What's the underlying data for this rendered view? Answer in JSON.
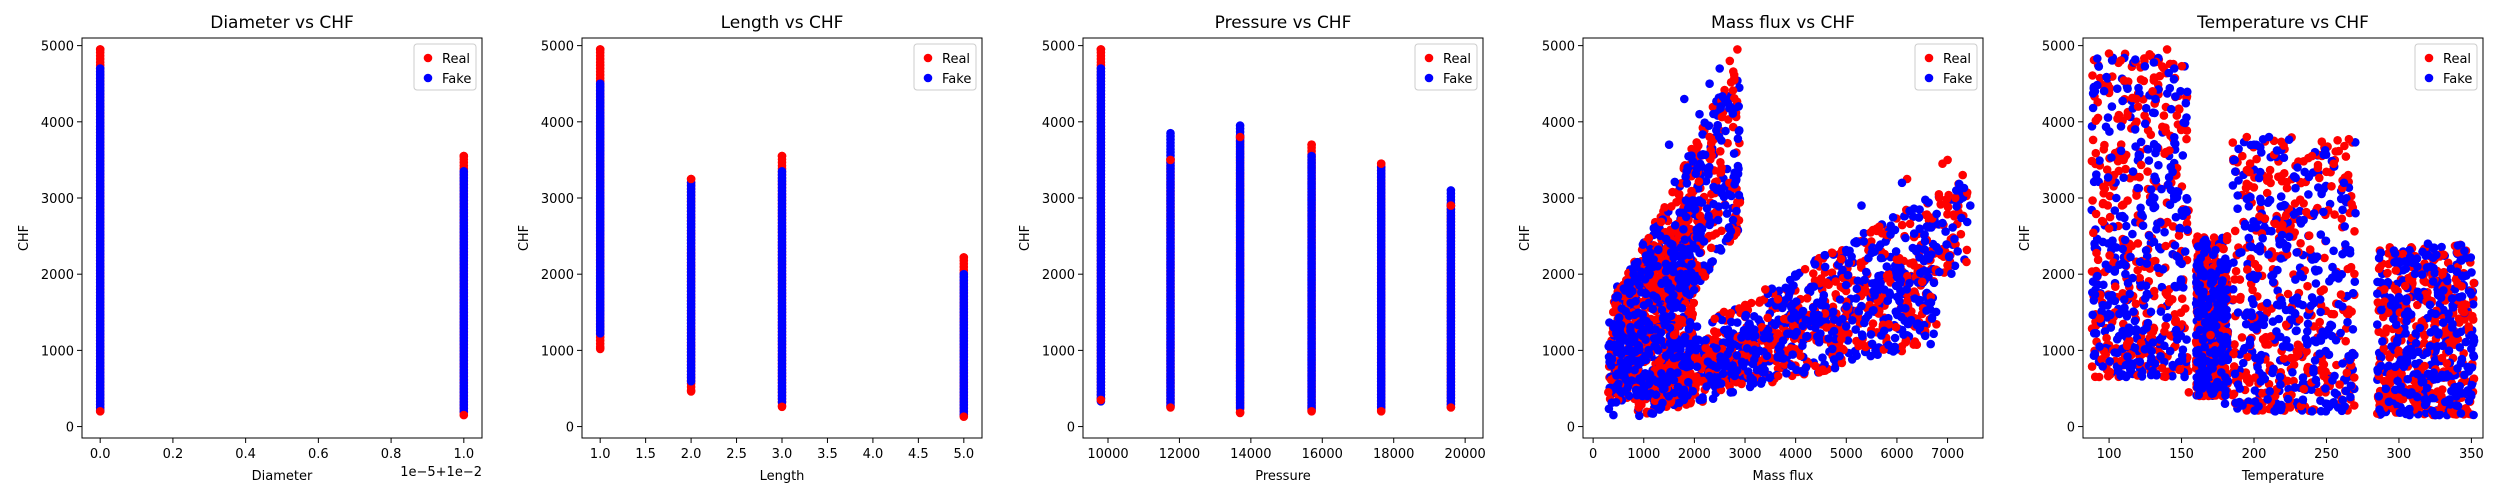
{
  "chart_data": [
    {
      "type": "scatter",
      "title": "Diameter vs CHF",
      "xlabel": "Diameter",
      "ylabel": "CHF",
      "xlim": [
        -0.05,
        1.05
      ],
      "ylim": [
        -150,
        5100
      ],
      "xticks": [
        0.0,
        0.2,
        0.4,
        0.6,
        0.8,
        1.0
      ],
      "xtick_labels": [
        "0.0",
        "0.2",
        "0.4",
        "0.6",
        "0.8",
        "1.0"
      ],
      "xaxis_offset_text": "1e−5+1e−2",
      "yticks": [
        0,
        1000,
        2000,
        3000,
        4000,
        5000
      ],
      "legend": {
        "position": "top-right",
        "entries": [
          "Real",
          "Fake"
        ]
      },
      "series": [
        {
          "name": "Real",
          "color": "#ff0000",
          "segments": [
            {
              "x": 0.0,
              "y": [
                200,
                4950
              ]
            },
            {
              "x": 1.0,
              "y": [
                150,
                3550
              ]
            }
          ]
        },
        {
          "name": "Fake",
          "color": "#0000ff",
          "segments": [
            {
              "x": 0.0,
              "y": [
                190,
                4700
              ]
            },
            {
              "x": 1.0,
              "y": [
                160,
                3350
              ]
            }
          ]
        }
      ]
    },
    {
      "type": "scatter",
      "title": "Length vs CHF",
      "xlabel": "Length",
      "ylabel": "CHF",
      "xlim": [
        0.8,
        5.2
      ],
      "ylim": [
        -150,
        5100
      ],
      "xticks": [
        1.0,
        1.5,
        2.0,
        2.5,
        3.0,
        3.5,
        4.0,
        4.5,
        5.0
      ],
      "xtick_labels": [
        "1.0",
        "1.5",
        "2.0",
        "2.5",
        "3.0",
        "3.5",
        "4.0",
        "4.5",
        "5.0"
      ],
      "yticks": [
        0,
        1000,
        2000,
        3000,
        4000,
        5000
      ],
      "legend": {
        "position": "top-right",
        "entries": [
          "Real",
          "Fake"
        ]
      },
      "series": [
        {
          "name": "Real",
          "color": "#ff0000",
          "segments": [
            {
              "x": 1.0,
              "y": [
                1020,
                4950
              ]
            },
            {
              "x": 2.0,
              "y": [
                460,
                3250
              ]
            },
            {
              "x": 3.0,
              "y": [
                260,
                3550
              ]
            },
            {
              "x": 5.0,
              "y": [
                130,
                2220
              ]
            }
          ]
        },
        {
          "name": "Fake",
          "color": "#0000ff",
          "segments": [
            {
              "x": 1.0,
              "y": [
                1200,
                4500
              ]
            },
            {
              "x": 2.0,
              "y": [
                560,
                3200
              ]
            },
            {
              "x": 3.0,
              "y": [
                300,
                3350
              ]
            },
            {
              "x": 5.0,
              "y": [
                150,
                2000
              ]
            }
          ]
        }
      ]
    },
    {
      "type": "scatter",
      "title": "Pressure vs CHF",
      "xlabel": "Pressure",
      "ylabel": "CHF",
      "xlim": [
        9300,
        20500
      ],
      "ylim": [
        -150,
        5100
      ],
      "xticks": [
        10000,
        12000,
        14000,
        16000,
        18000,
        20000
      ],
      "xtick_labels": [
        "10000",
        "12000",
        "14000",
        "16000",
        "18000",
        "20000"
      ],
      "yticks": [
        0,
        1000,
        2000,
        3000,
        4000,
        5000
      ],
      "legend": {
        "position": "top-right",
        "entries": [
          "Real",
          "Fake"
        ]
      },
      "series": [
        {
          "name": "Real",
          "color": "#ff0000",
          "segments": [
            {
              "x": 9800,
              "y": [
                350,
                4950
              ]
            },
            {
              "x": 11750,
              "y": [
                250,
                3500
              ]
            },
            {
              "x": 13700,
              "y": [
                180,
                3800
              ]
            },
            {
              "x": 15700,
              "y": [
                200,
                3700
              ]
            },
            {
              "x": 17650,
              "y": [
                200,
                3450
              ]
            },
            {
              "x": 19600,
              "y": [
                250,
                2900
              ]
            }
          ]
        },
        {
          "name": "Fake",
          "color": "#0000ff",
          "segments": [
            {
              "x": 9800,
              "y": [
                300,
                4700
              ]
            },
            {
              "x": 11750,
              "y": [
                280,
                3850
              ]
            },
            {
              "x": 13700,
              "y": [
                220,
                3950
              ]
            },
            {
              "x": 15700,
              "y": [
                220,
                3550
              ]
            },
            {
              "x": 17650,
              "y": [
                230,
                3400
              ]
            },
            {
              "x": 19600,
              "y": [
                260,
                3100
              ]
            }
          ]
        }
      ]
    },
    {
      "type": "scatter",
      "title": "Mass flux vs CHF",
      "xlabel": "Mass flux",
      "ylabel": "CHF",
      "xlim": [
        -200,
        7700
      ],
      "ylim": [
        -150,
        5100
      ],
      "xticks": [
        0,
        1000,
        2000,
        3000,
        4000,
        5000,
        6000,
        7000
      ],
      "xtick_labels": [
        "0",
        "1000",
        "2000",
        "3000",
        "4000",
        "5000",
        "6000",
        "7000"
      ],
      "yticks": [
        0,
        1000,
        2000,
        3000,
        4000,
        5000
      ],
      "legend": {
        "position": "top-right",
        "entries": [
          "Real",
          "Fake"
        ]
      },
      "series": [
        {
          "name": "Real",
          "color": "#ff0000",
          "points": [
            [
              2850,
              4950
            ],
            [
              2700,
              4800
            ],
            [
              7300,
              3300
            ],
            [
              7000,
              3500
            ],
            [
              6900,
              3450
            ],
            [
              6200,
              3250
            ],
            [
              2300,
              3800
            ],
            [
              4900,
              2200
            ],
            [
              5600,
              2600
            ],
            [
              6500,
              1900
            ],
            [
              300,
              450
            ],
            [
              900,
              250
            ],
            [
              1600,
              1200
            ],
            [
              3400,
              1800
            ]
          ]
        },
        {
          "name": "Fake",
          "color": "#0000ff",
          "points": [
            [
              2500,
              4700
            ],
            [
              2300,
              4500
            ],
            [
              1800,
              4300
            ],
            [
              7450,
              2900
            ],
            [
              7200,
              2300
            ],
            [
              6100,
              3200
            ],
            [
              5300,
              2900
            ],
            [
              2100,
              4100
            ],
            [
              1500,
              3700
            ],
            [
              400,
              150
            ],
            [
              800,
              2000
            ],
            [
              4200,
              1400
            ],
            [
              5800,
              2100
            ],
            [
              3000,
              1200
            ]
          ]
        }
      ],
      "bands": [
        {
          "x": [
            300,
            2900
          ],
          "y_lo": [
            200,
            2600
          ],
          "y_hi": [
            1500,
            4900
          ]
        },
        {
          "x": [
            400,
            2000
          ],
          "y_lo": [
            300,
            700
          ],
          "y_hi": [
            1800,
            3000
          ]
        },
        {
          "x": [
            1200,
            7400
          ],
          "y_lo": [
            200,
            2100
          ],
          "y_hi": [
            1000,
            3300
          ]
        },
        {
          "x": [
            800,
            6800
          ],
          "y_lo": [
            100,
            1100
          ],
          "y_hi": [
            600,
            2300
          ]
        }
      ]
    },
    {
      "type": "scatter",
      "title": "Temperature vs CHF",
      "xlabel": "Temperature",
      "ylabel": "CHF",
      "xlim": [
        82,
        358
      ],
      "ylim": [
        -150,
        5100
      ],
      "xticks": [
        100,
        150,
        200,
        250,
        300,
        350
      ],
      "xtick_labels": [
        "100",
        "150",
        "200",
        "250",
        "300",
        "350"
      ],
      "yticks": [
        0,
        1000,
        2000,
        3000,
        4000,
        5000
      ],
      "legend": {
        "position": "top-right",
        "entries": [
          "Real",
          "Fake"
        ]
      },
      "series": [
        {
          "name": "Real",
          "color": "#ff0000",
          "points": [
            [
              140,
              4950
            ],
            [
              135,
              4600
            ],
            [
              130,
              4400
            ],
            [
              120,
              4200
            ],
            [
              110,
              3500
            ],
            [
              100,
              2600
            ],
            [
              195,
              3800
            ],
            [
              240,
              3550
            ],
            [
              255,
              3450
            ],
            [
              265,
              3300
            ],
            [
              170,
              1200
            ],
            [
              290,
              1800
            ],
            [
              330,
              2000
            ],
            [
              345,
              1500
            ],
            [
              155,
              450
            ],
            [
              225,
              250
            ]
          ]
        },
        {
          "name": "Fake",
          "color": "#0000ff",
          "points": [
            [
              145,
              4700
            ],
            [
              132,
              4300
            ],
            [
              118,
              3900
            ],
            [
              105,
              3000
            ],
            [
              90,
              2400
            ],
            [
              200,
              3700
            ],
            [
              230,
              3400
            ],
            [
              262,
              3200
            ],
            [
              270,
              2800
            ],
            [
              165,
              1500
            ],
            [
              300,
              1700
            ],
            [
              320,
              2400
            ],
            [
              350,
              1200
            ],
            [
              180,
              300
            ],
            [
              240,
              200
            ],
            [
              325,
              150
            ]
          ]
        }
      ],
      "clusters": [
        {
          "x": [
            88,
            155
          ],
          "y": [
            650,
            4900
          ]
        },
        {
          "x": [
            160,
            182
          ],
          "y": [
            400,
            2500
          ]
        },
        {
          "x": [
            185,
            270
          ],
          "y": [
            200,
            3800
          ]
        },
        {
          "x": [
            285,
            352
          ],
          "y": [
            150,
            2400
          ]
        }
      ]
    }
  ]
}
